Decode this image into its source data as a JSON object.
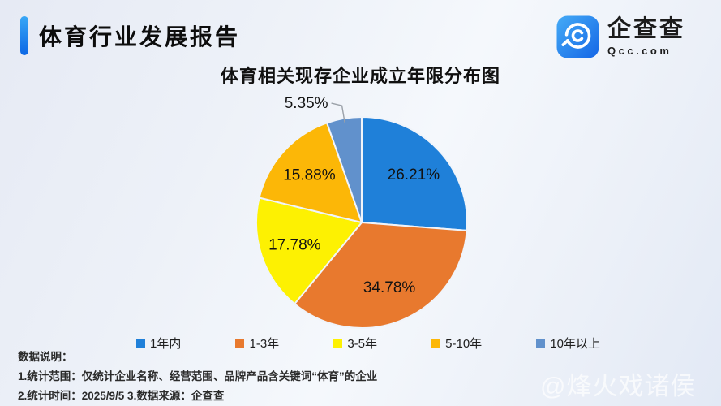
{
  "page": {
    "watermark": "@烽火戏诸侯"
  },
  "header": {
    "title": "体育行业发展报告"
  },
  "logo": {
    "name": "企查查",
    "domain": "Qcc.com",
    "icon": "qcc-q-spiral-icon",
    "icon_gradient_top": "#45abf6",
    "icon_gradient_bottom": "#1466e6"
  },
  "chart_data": {
    "type": "pie",
    "title": "体育相关现存企业成立年限分布图",
    "start_angle_deg": 0,
    "direction": "clockwise",
    "center": [
      446,
      274
    ],
    "radius": 130,
    "inner_label_radius_factor": 0.67,
    "slice_stroke": "#f0f4fa",
    "categories": [
      "1年内",
      "1-3年",
      "3-5年",
      "5-10年",
      "10年以上"
    ],
    "values": [
      26.21,
      34.78,
      17.78,
      15.88,
      5.35
    ],
    "slices": [
      {
        "label": "1年内",
        "value": 26.21,
        "color": "#1f80d9",
        "label_text": "26.21%",
        "label_pos": "inside"
      },
      {
        "label": "1-3年",
        "value": 34.78,
        "color": "#e8792e",
        "label_text": "34.78%",
        "label_pos": "inside"
      },
      {
        "label": "3-5年",
        "value": 17.78,
        "color": "#fdf102",
        "label_text": "17.78%",
        "label_pos": "inside"
      },
      {
        "label": "5-10年",
        "value": 15.88,
        "color": "#fcb707",
        "label_text": "15.88%",
        "label_pos": "inside"
      },
      {
        "label": "10年以上",
        "value": 5.35,
        "color": "#6191cc",
        "label_text": "5.35%",
        "label_pos": "outside"
      }
    ],
    "legend_position": "bottom",
    "leader_line_color": "#9aa0a8"
  },
  "notes": {
    "heading": "数据说明：",
    "line1": "1.统计范围：仅统计企业名称、经营范围、品牌产品含关键词“体育”的企业",
    "line2": "2.统计时间：2025/9/5  3.数据来源：企查查"
  }
}
